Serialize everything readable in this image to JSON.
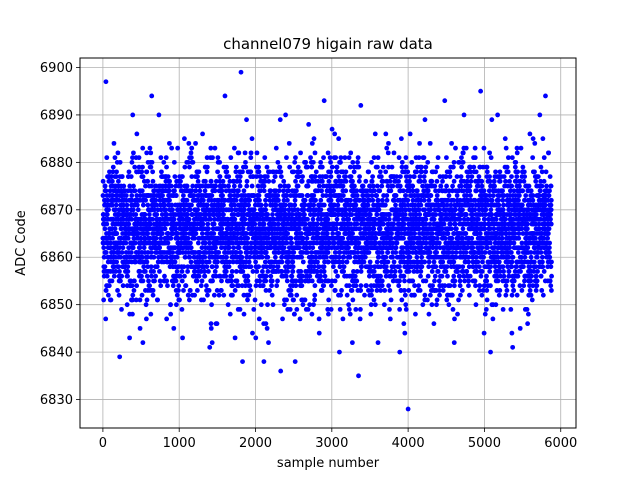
{
  "chart_data": {
    "type": "scatter",
    "title": "channel079 higain raw data",
    "xlabel": "sample number",
    "ylabel": "ADC Code",
    "xlim": [
      -300,
      6200
    ],
    "ylim": [
      6824,
      6902
    ],
    "xticks": [
      0,
      1000,
      2000,
      3000,
      4000,
      5000,
      6000
    ],
    "yticks": [
      6830,
      6840,
      6850,
      6860,
      6870,
      6880,
      6890,
      6900
    ],
    "grid": true,
    "marker_color": "#0000ff",
    "series": [
      {
        "n_points": 5880,
        "x_range": [
          0,
          5880
        ],
        "y_typical": [
          6850,
          6882
        ],
        "y_center": 6866,
        "notable_points": [
          {
            "x": 40,
            "y": 6897
          },
          {
            "x": 1810,
            "y": 6899
          },
          {
            "x": 4000,
            "y": 6828
          },
          {
            "x": 3350,
            "y": 6835
          },
          {
            "x": 2330,
            "y": 6836
          },
          {
            "x": 4950,
            "y": 6895
          },
          {
            "x": 5800,
            "y": 6894
          },
          {
            "x": 220,
            "y": 6839
          },
          {
            "x": 1830,
            "y": 6838
          },
          {
            "x": 2110,
            "y": 6838
          },
          {
            "x": 2520,
            "y": 6838
          },
          {
            "x": 3890,
            "y": 6840
          },
          {
            "x": 3100,
            "y": 6840
          },
          {
            "x": 1400,
            "y": 6841
          },
          {
            "x": 5370,
            "y": 6841
          },
          {
            "x": 5080,
            "y": 6840
          },
          {
            "x": 4480,
            "y": 6893
          },
          {
            "x": 640,
            "y": 6894
          },
          {
            "x": 1600,
            "y": 6894
          },
          {
            "x": 2900,
            "y": 6893
          },
          {
            "x": 3380,
            "y": 6892
          }
        ]
      }
    ]
  }
}
